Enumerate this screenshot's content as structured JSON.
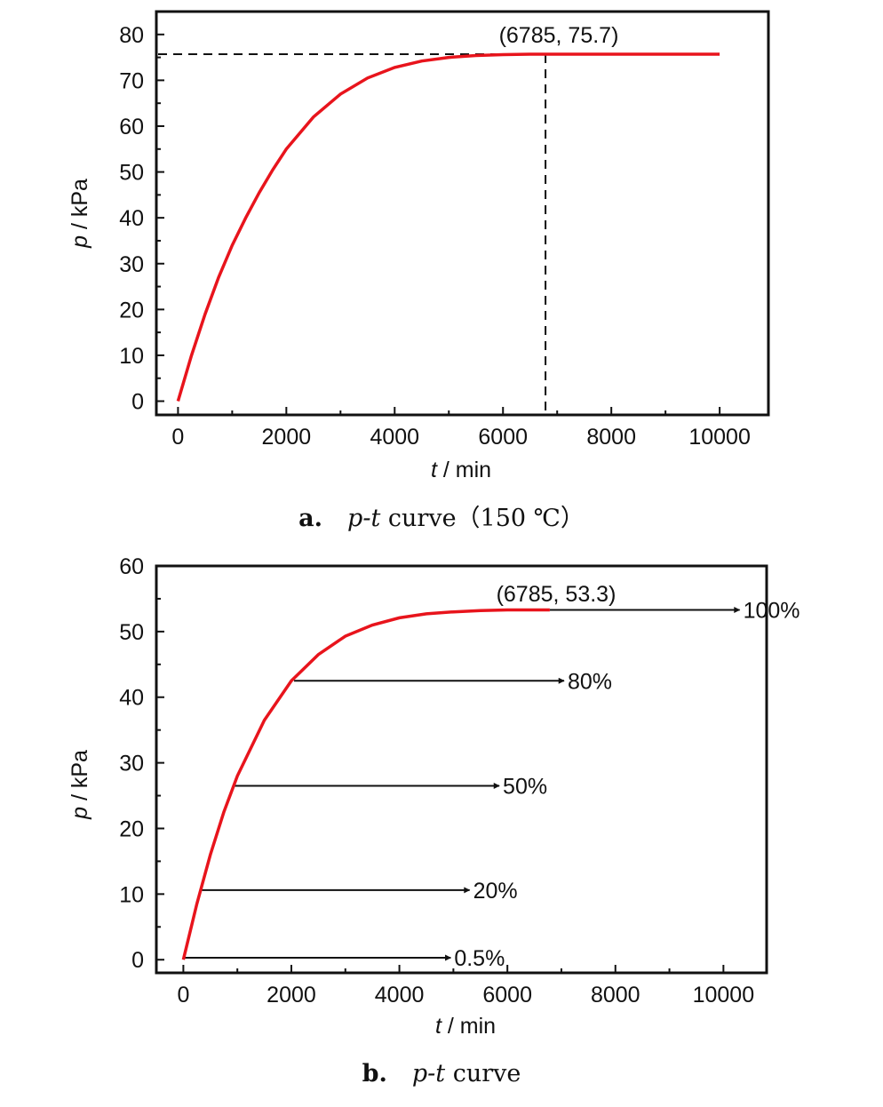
{
  "chart_data": [
    {
      "type": "line",
      "caption": {
        "letter": "a.",
        "var_p": "p",
        "var_t": "t",
        "text": " curve（150 ℃）"
      },
      "xlabel": {
        "var": "t",
        "unit": " / min"
      },
      "ylabel": {
        "var": "p",
        "unit": " / kPa"
      },
      "xlim": [
        -400,
        10900
      ],
      "ylim": [
        -3,
        85
      ],
      "xticks": [
        0,
        2000,
        4000,
        6000,
        8000,
        10000
      ],
      "yticks": [
        0,
        10,
        20,
        30,
        40,
        50,
        60,
        70,
        80
      ],
      "series": [
        {
          "color": "#e8141c",
          "x": [
            0,
            250,
            500,
            750,
            1000,
            1250,
            1500,
            1750,
            2000,
            2500,
            3000,
            3500,
            4000,
            4500,
            5000,
            5500,
            6000,
            6500,
            6785,
            7500,
            8500,
            10000
          ],
          "y": [
            0,
            10,
            19,
            27,
            34,
            40,
            45.5,
            50.5,
            55,
            62,
            67,
            70.5,
            72.8,
            74.2,
            75,
            75.4,
            75.6,
            75.7,
            75.7,
            75.7,
            75.7,
            75.7
          ]
        }
      ],
      "marker": {
        "x": 6785,
        "y": 75.7,
        "label": "(6785, 75.7)"
      }
    },
    {
      "type": "line",
      "caption": {
        "letter": "b.",
        "var_p": "p",
        "var_t": "t",
        "text": " curve"
      },
      "xlabel": {
        "var": "t",
        "unit": " / min"
      },
      "ylabel": {
        "var": "p",
        "unit": " / kPa"
      },
      "xlim": [
        -500,
        10800
      ],
      "ylim": [
        -2,
        60
      ],
      "xticks": [
        0,
        2000,
        4000,
        6000,
        8000,
        10000
      ],
      "yticks": [
        0,
        10,
        20,
        30,
        40,
        50,
        60
      ],
      "series": [
        {
          "color": "#e8141c",
          "x": [
            0,
            250,
            500,
            750,
            1000,
            1500,
            2000,
            2500,
            3000,
            3500,
            4000,
            4500,
            5000,
            5500,
            6000,
            6500,
            6785
          ],
          "y": [
            0,
            8.5,
            16,
            22.5,
            28,
            36.5,
            42.5,
            46.5,
            49.3,
            51,
            52.1,
            52.7,
            53,
            53.2,
            53.3,
            53.3,
            53.3
          ]
        }
      ],
      "marker": {
        "label": "(6785, 53.3)"
      },
      "arrows": [
        {
          "label": "0.5%",
          "y": 0.3,
          "x_start": 0,
          "x_end": 4950
        },
        {
          "label": "20%",
          "y": 10.6,
          "x_start": 330,
          "x_end": 5300
        },
        {
          "label": "50%",
          "y": 26.5,
          "x_start": 950,
          "x_end": 5850
        },
        {
          "label": "80%",
          "y": 42.5,
          "x_start": 2050,
          "x_end": 7050
        },
        {
          "label": "100%",
          "y": 53.3,
          "x_start": 6785,
          "x_end": 10300
        }
      ]
    }
  ]
}
